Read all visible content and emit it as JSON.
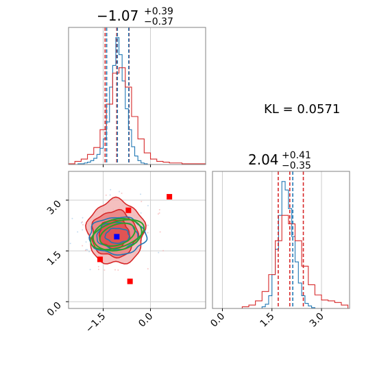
{
  "colors": {
    "blue": "#1f77b4",
    "red": "#d62728",
    "green": "#2ca02c",
    "marker_red": "#ff0000",
    "marker_blue": "#0000ff",
    "grid": "#cccccc",
    "axis": "#808080"
  },
  "chart_data": [
    {
      "type": "histogram",
      "panel": "top-left",
      "title": {
        "value": "−1.07",
        "sup": "+0.39",
        "sub": "−0.37"
      },
      "xlim": [
        -2.6,
        1.75
      ],
      "xticks": [
        -1.5,
        0.0
      ],
      "grid": true,
      "quantile_lines": {
        "red": [
          -1.44,
          -1.07,
          -0.68
        ],
        "blue": [
          -1.39,
          -1.05,
          -0.69
        ]
      },
      "series": [
        {
          "color": "blue",
          "bins": [
            -2.4,
            -2.3,
            -2.2,
            -2.1,
            -2.0,
            -1.9,
            -1.8,
            -1.7,
            -1.6,
            -1.5,
            -1.4,
            -1.3,
            -1.2,
            -1.1,
            -1.0,
            -0.9,
            -0.8,
            -0.7,
            -0.6,
            -0.5,
            -0.4,
            -0.3,
            -0.2,
            -0.1,
            0.0
          ],
          "counts": [
            0,
            1,
            1,
            2,
            3,
            5,
            8,
            13,
            21,
            33,
            55,
            100,
            128,
            164,
            142,
            108,
            72,
            45,
            23,
            11,
            5,
            2,
            1,
            0
          ]
        },
        {
          "color": "red",
          "bins": [
            -2.6,
            -2.4,
            -2.2,
            -2.0,
            -1.8,
            -1.6,
            -1.4,
            -1.2,
            -1.0,
            -0.8,
            -0.6,
            -0.4,
            -0.2,
            0.0,
            0.2,
            0.4,
            0.6,
            0.8,
            1.0,
            1.2,
            1.4,
            1.6,
            1.75
          ],
          "counts": [
            1,
            4,
            7,
            13,
            22,
            45,
            78,
            118,
            125,
            100,
            62,
            33,
            15,
            7,
            4,
            3,
            2,
            2,
            1,
            1,
            1,
            1
          ]
        }
      ]
    },
    {
      "type": "histogram",
      "panel": "bottom-right",
      "title": {
        "value": "2.04",
        "sup": "+0.41",
        "sub": "−0.35"
      },
      "xlim": [
        -0.3,
        3.85
      ],
      "xticks": [
        0.0,
        1.5,
        3.0
      ],
      "grid": true,
      "quantile_lines": {
        "red": [
          1.69,
          2.04,
          2.45
        ],
        "blue": [
          2.13
        ]
      },
      "series": [
        {
          "color": "blue",
          "bins": [
            1.2,
            1.3,
            1.4,
            1.5,
            1.6,
            1.7,
            1.8,
            1.9,
            2.0,
            2.1,
            2.2,
            2.3,
            2.4,
            2.5,
            2.6,
            2.7,
            2.8
          ],
          "counts": [
            2,
            5,
            15,
            40,
            70,
            110,
            150,
            140,
            118,
            85,
            55,
            30,
            15,
            6,
            3,
            1
          ]
        },
        {
          "color": "red",
          "bins": [
            0.6,
            0.8,
            1.0,
            1.2,
            1.4,
            1.6,
            1.8,
            2.0,
            2.2,
            2.4,
            2.6,
            2.8,
            3.0,
            3.2,
            3.4,
            3.6,
            3.8
          ],
          "counts": [
            2,
            4,
            9,
            20,
            40,
            80,
            110,
            100,
            80,
            50,
            28,
            16,
            10,
            9,
            7,
            4
          ]
        }
      ]
    },
    {
      "type": "contour",
      "panel": "bottom-left",
      "xlim": [
        -2.6,
        1.75
      ],
      "ylim": [
        -0.2,
        3.85
      ],
      "xticks": [
        -1.5,
        0.0
      ],
      "yticks": [
        0.0,
        1.5,
        3.0
      ],
      "grid": true,
      "red_contours": [
        {
          "level": "outer",
          "cx": -1.1,
          "cy": 2.05,
          "rx": 0.9,
          "ry": 0.95
        },
        {
          "level": "middle",
          "cx": -1.15,
          "cy": 2.0,
          "rx": 0.72,
          "ry": 0.68
        },
        {
          "level": "inner",
          "cx": -1.15,
          "cy": 2.0,
          "rx": 0.48,
          "ry": 0.42
        }
      ],
      "blue_contours": [
        {
          "cx": -1.05,
          "cy": 1.95,
          "rx": 0.9,
          "ry": 0.55
        },
        {
          "cx": -1.05,
          "cy": 1.95,
          "rx": 0.65,
          "ry": 0.4
        },
        {
          "cx": -1.05,
          "cy": 1.95,
          "rx": 0.38,
          "ry": 0.22
        }
      ],
      "green_ellipses": [
        {
          "cx": -1.05,
          "cy": 1.98,
          "rx": 0.88,
          "ry": 0.38,
          "angle_deg": -18
        },
        {
          "cx": -1.05,
          "cy": 1.98,
          "rx": 0.78,
          "ry": 0.46,
          "angle_deg": -12
        },
        {
          "cx": -1.05,
          "cy": 1.98,
          "rx": 0.58,
          "ry": 0.3,
          "angle_deg": -20
        }
      ],
      "red_markers": [
        {
          "x": 0.6,
          "y": 3.1
        },
        {
          "x": -0.7,
          "y": 2.7
        },
        {
          "x": -1.6,
          "y": 1.25
        },
        {
          "x": -0.65,
          "y": 0.6
        }
      ],
      "blue_markers": [
        {
          "x": -1.07,
          "y": 1.92
        }
      ]
    }
  ],
  "annotation": {
    "kl_text": "KL = 0.0571"
  }
}
